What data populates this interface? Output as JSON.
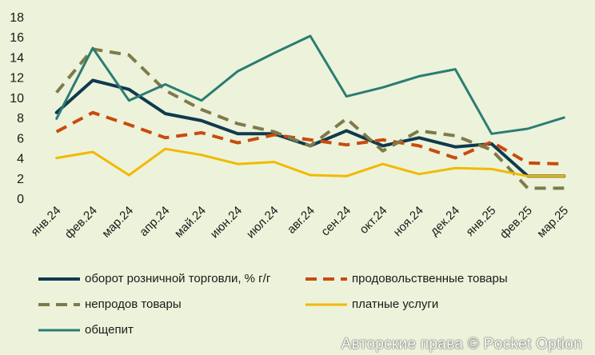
{
  "chart_data": {
    "type": "line",
    "categories": [
      "янв.24",
      "фев.24",
      "мар.24",
      "апр.24",
      "май.24",
      "июн.24",
      "июл.24",
      "авг.24",
      "сен.24",
      "окт.24",
      "ноя.24",
      "дек.24",
      "янв.25",
      "фев.25",
      "мар.25"
    ],
    "ylim": [
      0,
      18
    ],
    "yticks": [
      0,
      2,
      4,
      6,
      8,
      10,
      12,
      14,
      16,
      18
    ],
    "grid": false,
    "legend_position": "bottom",
    "series": [
      {
        "name": "оборот розничной торговли, % г/г",
        "color": "#0f3a4e",
        "style": "solid",
        "width": 4,
        "values": [
          8.5,
          11.7,
          10.8,
          8.4,
          7.7,
          6.4,
          6.4,
          5.2,
          6.7,
          5.2,
          6.0,
          5.1,
          5.4,
          2.2,
          2.2
        ]
      },
      {
        "name": "продовольственные товары",
        "color": "#c94a0e",
        "style": "dash",
        "width": 4,
        "values": [
          6.6,
          8.5,
          7.3,
          6.0,
          6.5,
          5.5,
          6.3,
          5.8,
          5.3,
          5.8,
          5.2,
          4.0,
          5.6,
          3.5,
          3.4
        ]
      },
      {
        "name": "непродов товары",
        "color": "#7e7a4a",
        "style": "dash",
        "width": 4,
        "values": [
          10.5,
          14.8,
          14.2,
          10.7,
          8.8,
          7.4,
          6.6,
          5.2,
          7.9,
          4.7,
          6.7,
          6.2,
          4.8,
          1.0,
          1.0
        ]
      },
      {
        "name": "платные услуги",
        "color": "#f2b900",
        "style": "solid",
        "width": 3,
        "values": [
          4.0,
          4.6,
          2.3,
          4.9,
          4.3,
          3.4,
          3.6,
          2.3,
          2.2,
          3.4,
          2.4,
          3.0,
          2.9,
          2.2,
          2.2
        ]
      },
      {
        "name": "общепит",
        "color": "#2c7c74",
        "style": "solid",
        "width": 3,
        "values": [
          7.9,
          14.9,
          9.7,
          11.3,
          9.7,
          12.6,
          14.4,
          16.1,
          10.1,
          11.0,
          12.1,
          12.8,
          6.4,
          6.9,
          8.0
        ]
      }
    ]
  },
  "watermark": "Авторские права © Pocket Option"
}
